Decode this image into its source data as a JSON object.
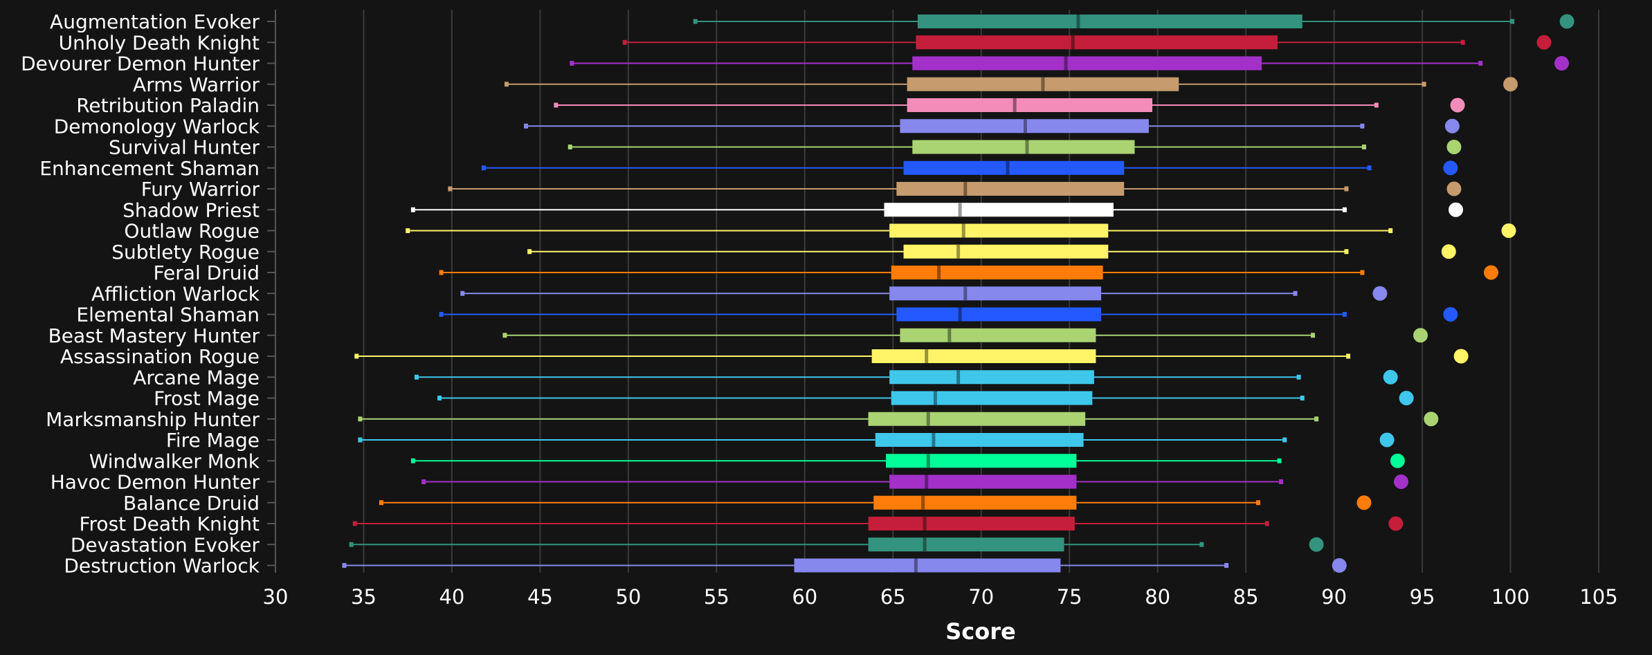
{
  "chart_data": {
    "type": "box",
    "xlabel": "Score",
    "xlim": [
      30,
      105
    ],
    "xticks": [
      30,
      35,
      40,
      45,
      50,
      55,
      60,
      65,
      70,
      75,
      80,
      85,
      90,
      95,
      100,
      105
    ],
    "grid": "vertical",
    "series": [
      {
        "name": "Augmentation Evoker",
        "color": "#33937F",
        "min": 53.8,
        "q1": 66.4,
        "median": 75.5,
        "q3": 88.2,
        "max": 100.1,
        "top": 103.2
      },
      {
        "name": "Unholy Death Knight",
        "color": "#C41E3A",
        "min": 49.8,
        "q1": 66.3,
        "median": 75.2,
        "q3": 86.8,
        "max": 97.3,
        "top": 101.9
      },
      {
        "name": "Devourer Demon Hunter",
        "color": "#A330C9",
        "min": 46.8,
        "q1": 66.1,
        "median": 74.8,
        "q3": 85.9,
        "max": 98.3,
        "top": 102.9
      },
      {
        "name": "Arms Warrior",
        "color": "#C69B6D",
        "min": 43.1,
        "q1": 65.8,
        "median": 73.5,
        "q3": 81.2,
        "max": 95.1,
        "top": 100.0
      },
      {
        "name": "Retribution Paladin",
        "color": "#F48CBA",
        "min": 45.9,
        "q1": 65.8,
        "median": 71.9,
        "q3": 79.7,
        "max": 92.4,
        "top": 97.0
      },
      {
        "name": "Demonology Warlock",
        "color": "#8788EE",
        "min": 44.2,
        "q1": 65.4,
        "median": 72.5,
        "q3": 79.5,
        "max": 91.6,
        "top": 96.7
      },
      {
        "name": "Survival Hunter",
        "color": "#AAD372",
        "min": 46.7,
        "q1": 66.1,
        "median": 72.6,
        "q3": 78.7,
        "max": 91.7,
        "top": 96.8
      },
      {
        "name": "Enhancement Shaman",
        "color": "#2459FF",
        "min": 41.8,
        "q1": 65.6,
        "median": 71.5,
        "q3": 78.1,
        "max": 92.0,
        "top": 96.6
      },
      {
        "name": "Fury Warrior",
        "color": "#C69B6D",
        "min": 39.9,
        "q1": 65.2,
        "median": 69.1,
        "q3": 78.1,
        "max": 90.7,
        "top": 96.8
      },
      {
        "name": "Shadow Priest",
        "color": "#FFFFFF",
        "min": 37.8,
        "q1": 64.5,
        "median": 68.8,
        "q3": 77.5,
        "max": 90.6,
        "top": 96.9
      },
      {
        "name": "Outlaw Rogue",
        "color": "#FFF468",
        "min": 37.5,
        "q1": 64.8,
        "median": 69.0,
        "q3": 77.2,
        "max": 93.2,
        "top": 99.9
      },
      {
        "name": "Subtlety Rogue",
        "color": "#FFF468",
        "min": 44.4,
        "q1": 65.6,
        "median": 68.7,
        "q3": 77.2,
        "max": 90.7,
        "top": 96.5
      },
      {
        "name": "Feral Druid",
        "color": "#FF7C0A",
        "min": 39.4,
        "q1": 64.9,
        "median": 67.6,
        "q3": 76.9,
        "max": 91.6,
        "top": 98.9
      },
      {
        "name": "Affliction Warlock",
        "color": "#8788EE",
        "min": 40.6,
        "q1": 64.8,
        "median": 69.1,
        "q3": 76.8,
        "max": 87.8,
        "top": 92.6
      },
      {
        "name": "Elemental Shaman",
        "color": "#2459FF",
        "min": 39.4,
        "q1": 65.2,
        "median": 68.8,
        "q3": 76.8,
        "max": 90.6,
        "top": 96.6
      },
      {
        "name": "Beast Mastery Hunter",
        "color": "#AAD372",
        "min": 43.0,
        "q1": 65.4,
        "median": 68.2,
        "q3": 76.5,
        "max": 88.8,
        "top": 94.9
      },
      {
        "name": "Assassination Rogue",
        "color": "#FFF468",
        "min": 34.6,
        "q1": 63.8,
        "median": 66.9,
        "q3": 76.5,
        "max": 90.8,
        "top": 97.2
      },
      {
        "name": "Arcane Mage",
        "color": "#3FC7EB",
        "min": 38.0,
        "q1": 64.8,
        "median": 68.7,
        "q3": 76.4,
        "max": 88.0,
        "top": 93.2
      },
      {
        "name": "Frost Mage",
        "color": "#3FC7EB",
        "min": 39.3,
        "q1": 64.9,
        "median": 67.4,
        "q3": 76.3,
        "max": 88.2,
        "top": 94.1
      },
      {
        "name": "Marksmanship Hunter",
        "color": "#AAD372",
        "min": 34.8,
        "q1": 63.6,
        "median": 67.0,
        "q3": 75.9,
        "max": 89.0,
        "top": 95.5
      },
      {
        "name": "Fire Mage",
        "color": "#3FC7EB",
        "min": 34.8,
        "q1": 64.0,
        "median": 67.3,
        "q3": 75.8,
        "max": 87.2,
        "top": 93.0
      },
      {
        "name": "Windwalker Monk",
        "color": "#00FF98",
        "min": 37.8,
        "q1": 64.6,
        "median": 67.0,
        "q3": 75.4,
        "max": 86.9,
        "top": 93.6
      },
      {
        "name": "Havoc Demon Hunter",
        "color": "#A330C9",
        "min": 38.4,
        "q1": 64.8,
        "median": 66.9,
        "q3": 75.4,
        "max": 87.0,
        "top": 93.8
      },
      {
        "name": "Balance Druid",
        "color": "#FF7C0A",
        "min": 36.0,
        "q1": 63.9,
        "median": 66.7,
        "q3": 75.4,
        "max": 85.7,
        "top": 91.7
      },
      {
        "name": "Frost Death Knight",
        "color": "#C41E3A",
        "min": 34.5,
        "q1": 63.6,
        "median": 66.8,
        "q3": 75.3,
        "max": 86.2,
        "top": 93.5
      },
      {
        "name": "Devastation Evoker",
        "color": "#33937F",
        "min": 34.3,
        "q1": 63.6,
        "median": 66.8,
        "q3": 74.7,
        "max": 82.5,
        "top": 89.0
      },
      {
        "name": "Destruction Warlock",
        "color": "#8788EE",
        "min": 33.9,
        "q1": 59.4,
        "median": 66.3,
        "q3": 74.5,
        "max": 83.9,
        "top": 90.3
      }
    ]
  }
}
